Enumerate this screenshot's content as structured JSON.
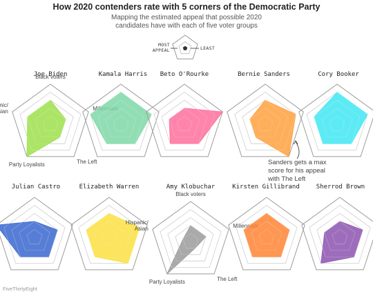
{
  "title": "How 2020 contenders rate with 5 corners of the Democratic Party",
  "subtitle_lines": [
    "Mapping the estimated appeal that possible 2020",
    "candidates have with each of five voter groups"
  ],
  "legend": {
    "most_label_line1": "MOST",
    "most_label_line2": "APPEAL",
    "least_label": "LEAST"
  },
  "credit": "FiveThirtyEight",
  "annotation_lines": [
    "Sanders gets a max",
    "score for his appeal",
    "with The Left"
  ],
  "chart_data": {
    "type": "radar",
    "axes": [
      "Black voters",
      "Millennials",
      "The Left",
      "Party Loyalists",
      "Hispanic/ Asian"
    ],
    "scale": [
      0,
      5
    ],
    "rings": 5,
    "labeled_charts": [
      "Joe Biden",
      "Amy Klobuchar"
    ],
    "candidates": [
      {
        "name": "Joe Biden",
        "color": "#9ee04a",
        "values": [
          3,
          2,
          2,
          5,
          3
        ]
      },
      {
        "name": "Kamala Harris",
        "color": "#7fd8a7",
        "values": [
          4,
          4,
          3,
          3,
          4
        ]
      },
      {
        "name": "Beto O'Rourke",
        "color": "#ff6f9c",
        "values": [
          2,
          5,
          3,
          3,
          2
        ]
      },
      {
        "name": "Bernie Sanders",
        "color": "#ffa03d",
        "values": [
          3,
          4,
          5,
          2,
          2
        ]
      },
      {
        "name": "Cory Booker",
        "color": "#3fe7f3",
        "values": [
          4,
          4,
          3,
          3,
          3
        ]
      },
      {
        "name": "Julian Castro",
        "color": "#3a67cf",
        "values": [
          2,
          3,
          3,
          3,
          5
        ]
      },
      {
        "name": "Elizabeth Warren",
        "color": "#fbe140",
        "values": [
          3,
          4,
          4,
          3,
          3
        ]
      },
      {
        "name": "Amy Klobuchar",
        "color": "#9b9b9b",
        "values": [
          2,
          2,
          1,
          5,
          1
        ]
      },
      {
        "name": "Kirsten Gillibrand",
        "color": "#ff8434",
        "values": [
          3,
          3,
          3,
          3,
          3
        ]
      },
      {
        "name": "Sherrod Brown",
        "color": "#8c54b0",
        "values": [
          2,
          3,
          3,
          4,
          2
        ]
      }
    ]
  }
}
